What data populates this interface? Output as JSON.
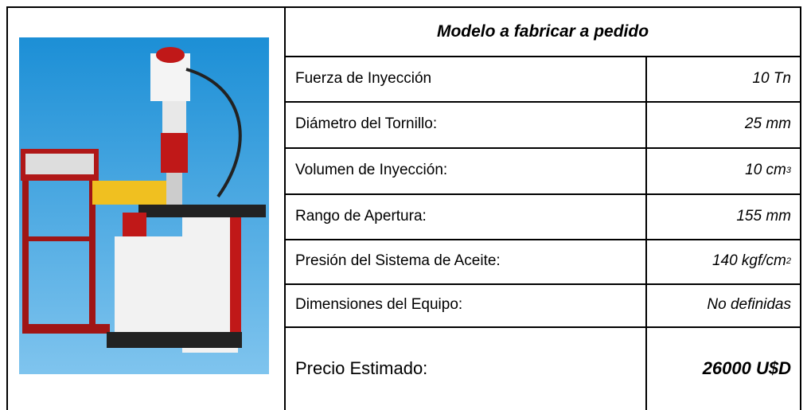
{
  "title": "Modelo a fabricar a pedido",
  "specs": [
    {
      "label": "Fuerza de Inyección",
      "value": "10 Tn"
    },
    {
      "label": "Diámetro del Tornillo:",
      "value": "25 mm"
    },
    {
      "label": "Volumen de Inyección:",
      "value": "10 cm",
      "sup": "3"
    },
    {
      "label": "Rango de Apertura:",
      "value": "155 mm"
    },
    {
      "label": "Presión del Sistema de Aceite:",
      "value": "140 kgf/cm",
      "sup": "2"
    },
    {
      "label": "Dimensiones del Equipo:",
      "value": "No definidas"
    }
  ],
  "price": {
    "label": "Precio Estimado:",
    "value": "26000 U$D"
  }
}
